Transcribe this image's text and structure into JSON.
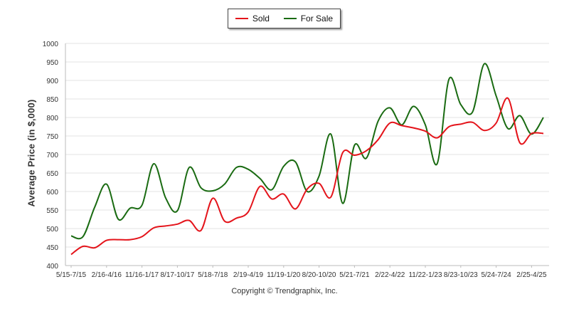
{
  "chart_data": {
    "type": "line",
    "categories": [
      "5/15-7/15",
      "2/16-4/16",
      "11/16-1/17",
      "8/17-10/17",
      "5/18-7/18",
      "2/19-4/19",
      "11/19-1/20",
      "8/20-10/20",
      "5/21-7/21",
      "2/22-4/22",
      "11/22-1/23",
      "8/23-10/23",
      "5/24-7/24",
      "2/25-4/25"
    ],
    "x": [
      0,
      1,
      2,
      3,
      4,
      5,
      6,
      7,
      8,
      9,
      10,
      11,
      12,
      13,
      14,
      15,
      16,
      17,
      18,
      19,
      20,
      21,
      22,
      23,
      24,
      25,
      26,
      27,
      28,
      29,
      30,
      31,
      32,
      33,
      34,
      35,
      36,
      37,
      38,
      39,
      40
    ],
    "series": [
      {
        "name": "Sold",
        "color": "#e4141b",
        "values": [
          430,
          452,
          448,
          468,
          470,
          470,
          478,
          502,
          507,
          512,
          522,
          495,
          582,
          520,
          528,
          545,
          614,
          580,
          593,
          553,
          607,
          622,
          585,
          705,
          698,
          710,
          740,
          785,
          778,
          772,
          763,
          745,
          775,
          782,
          787,
          765,
          785,
          852,
          732,
          757,
          757
        ]
      },
      {
        "name": "For Sale",
        "color": "#1a6b12",
        "values": [
          480,
          478,
          558,
          620,
          525,
          555,
          563,
          675,
          583,
          548,
          665,
          610,
          602,
          620,
          665,
          660,
          635,
          605,
          668,
          680,
          600,
          642,
          755,
          568,
          725,
          690,
          790,
          826,
          780,
          830,
          780,
          675,
          903,
          835,
          815,
          945,
          858,
          770,
          805,
          755,
          800
        ]
      }
    ],
    "ylabel": "Average Price (in $,000)",
    "ylim": [
      400,
      1000
    ],
    "yticks": [
      400,
      450,
      500,
      550,
      600,
      650,
      700,
      750,
      800,
      850,
      900,
      950,
      1000
    ],
    "grid": true,
    "legend_position": "top-center"
  },
  "footer": "Copyright © Trendgraphix, Inc."
}
